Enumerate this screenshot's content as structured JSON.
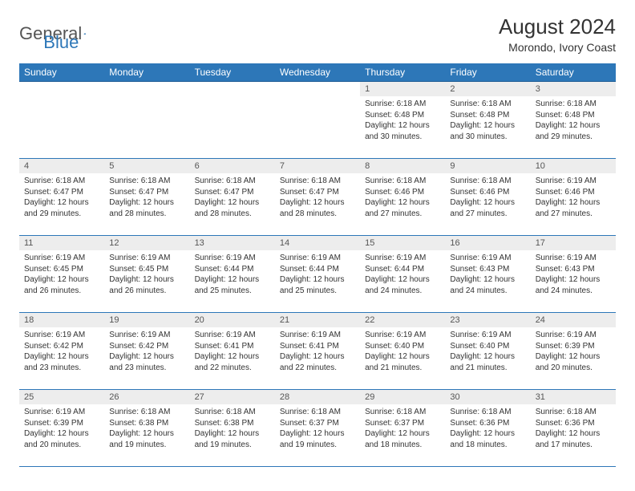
{
  "logo": {
    "part1": "General",
    "part2": "Blue"
  },
  "title": "August 2024",
  "subtitle": "Morondo, Ivory Coast",
  "colors": {
    "header_bg": "#2d77b8",
    "header_text": "#ffffff",
    "daynum_bg": "#ededed",
    "border": "#2d77b8",
    "text": "#333333"
  },
  "day_labels": [
    "Sunday",
    "Monday",
    "Tuesday",
    "Wednesday",
    "Thursday",
    "Friday",
    "Saturday"
  ],
  "weeks": [
    [
      {
        "n": "",
        "lines": []
      },
      {
        "n": "",
        "lines": []
      },
      {
        "n": "",
        "lines": []
      },
      {
        "n": "",
        "lines": []
      },
      {
        "n": "1",
        "lines": [
          "Sunrise: 6:18 AM",
          "Sunset: 6:48 PM",
          "Daylight: 12 hours and 30 minutes."
        ]
      },
      {
        "n": "2",
        "lines": [
          "Sunrise: 6:18 AM",
          "Sunset: 6:48 PM",
          "Daylight: 12 hours and 30 minutes."
        ]
      },
      {
        "n": "3",
        "lines": [
          "Sunrise: 6:18 AM",
          "Sunset: 6:48 PM",
          "Daylight: 12 hours and 29 minutes."
        ]
      }
    ],
    [
      {
        "n": "4",
        "lines": [
          "Sunrise: 6:18 AM",
          "Sunset: 6:47 PM",
          "Daylight: 12 hours and 29 minutes."
        ]
      },
      {
        "n": "5",
        "lines": [
          "Sunrise: 6:18 AM",
          "Sunset: 6:47 PM",
          "Daylight: 12 hours and 28 minutes."
        ]
      },
      {
        "n": "6",
        "lines": [
          "Sunrise: 6:18 AM",
          "Sunset: 6:47 PM",
          "Daylight: 12 hours and 28 minutes."
        ]
      },
      {
        "n": "7",
        "lines": [
          "Sunrise: 6:18 AM",
          "Sunset: 6:47 PM",
          "Daylight: 12 hours and 28 minutes."
        ]
      },
      {
        "n": "8",
        "lines": [
          "Sunrise: 6:18 AM",
          "Sunset: 6:46 PM",
          "Daylight: 12 hours and 27 minutes."
        ]
      },
      {
        "n": "9",
        "lines": [
          "Sunrise: 6:18 AM",
          "Sunset: 6:46 PM",
          "Daylight: 12 hours and 27 minutes."
        ]
      },
      {
        "n": "10",
        "lines": [
          "Sunrise: 6:19 AM",
          "Sunset: 6:46 PM",
          "Daylight: 12 hours and 27 minutes."
        ]
      }
    ],
    [
      {
        "n": "11",
        "lines": [
          "Sunrise: 6:19 AM",
          "Sunset: 6:45 PM",
          "Daylight: 12 hours and 26 minutes."
        ]
      },
      {
        "n": "12",
        "lines": [
          "Sunrise: 6:19 AM",
          "Sunset: 6:45 PM",
          "Daylight: 12 hours and 26 minutes."
        ]
      },
      {
        "n": "13",
        "lines": [
          "Sunrise: 6:19 AM",
          "Sunset: 6:44 PM",
          "Daylight: 12 hours and 25 minutes."
        ]
      },
      {
        "n": "14",
        "lines": [
          "Sunrise: 6:19 AM",
          "Sunset: 6:44 PM",
          "Daylight: 12 hours and 25 minutes."
        ]
      },
      {
        "n": "15",
        "lines": [
          "Sunrise: 6:19 AM",
          "Sunset: 6:44 PM",
          "Daylight: 12 hours and 24 minutes."
        ]
      },
      {
        "n": "16",
        "lines": [
          "Sunrise: 6:19 AM",
          "Sunset: 6:43 PM",
          "Daylight: 12 hours and 24 minutes."
        ]
      },
      {
        "n": "17",
        "lines": [
          "Sunrise: 6:19 AM",
          "Sunset: 6:43 PM",
          "Daylight: 12 hours and 24 minutes."
        ]
      }
    ],
    [
      {
        "n": "18",
        "lines": [
          "Sunrise: 6:19 AM",
          "Sunset: 6:42 PM",
          "Daylight: 12 hours and 23 minutes."
        ]
      },
      {
        "n": "19",
        "lines": [
          "Sunrise: 6:19 AM",
          "Sunset: 6:42 PM",
          "Daylight: 12 hours and 23 minutes."
        ]
      },
      {
        "n": "20",
        "lines": [
          "Sunrise: 6:19 AM",
          "Sunset: 6:41 PM",
          "Daylight: 12 hours and 22 minutes."
        ]
      },
      {
        "n": "21",
        "lines": [
          "Sunrise: 6:19 AM",
          "Sunset: 6:41 PM",
          "Daylight: 12 hours and 22 minutes."
        ]
      },
      {
        "n": "22",
        "lines": [
          "Sunrise: 6:19 AM",
          "Sunset: 6:40 PM",
          "Daylight: 12 hours and 21 minutes."
        ]
      },
      {
        "n": "23",
        "lines": [
          "Sunrise: 6:19 AM",
          "Sunset: 6:40 PM",
          "Daylight: 12 hours and 21 minutes."
        ]
      },
      {
        "n": "24",
        "lines": [
          "Sunrise: 6:19 AM",
          "Sunset: 6:39 PM",
          "Daylight: 12 hours and 20 minutes."
        ]
      }
    ],
    [
      {
        "n": "25",
        "lines": [
          "Sunrise: 6:19 AM",
          "Sunset: 6:39 PM",
          "Daylight: 12 hours and 20 minutes."
        ]
      },
      {
        "n": "26",
        "lines": [
          "Sunrise: 6:18 AM",
          "Sunset: 6:38 PM",
          "Daylight: 12 hours and 19 minutes."
        ]
      },
      {
        "n": "27",
        "lines": [
          "Sunrise: 6:18 AM",
          "Sunset: 6:38 PM",
          "Daylight: 12 hours and 19 minutes."
        ]
      },
      {
        "n": "28",
        "lines": [
          "Sunrise: 6:18 AM",
          "Sunset: 6:37 PM",
          "Daylight: 12 hours and 19 minutes."
        ]
      },
      {
        "n": "29",
        "lines": [
          "Sunrise: 6:18 AM",
          "Sunset: 6:37 PM",
          "Daylight: 12 hours and 18 minutes."
        ]
      },
      {
        "n": "30",
        "lines": [
          "Sunrise: 6:18 AM",
          "Sunset: 6:36 PM",
          "Daylight: 12 hours and 18 minutes."
        ]
      },
      {
        "n": "31",
        "lines": [
          "Sunrise: 6:18 AM",
          "Sunset: 6:36 PM",
          "Daylight: 12 hours and 17 minutes."
        ]
      }
    ]
  ]
}
